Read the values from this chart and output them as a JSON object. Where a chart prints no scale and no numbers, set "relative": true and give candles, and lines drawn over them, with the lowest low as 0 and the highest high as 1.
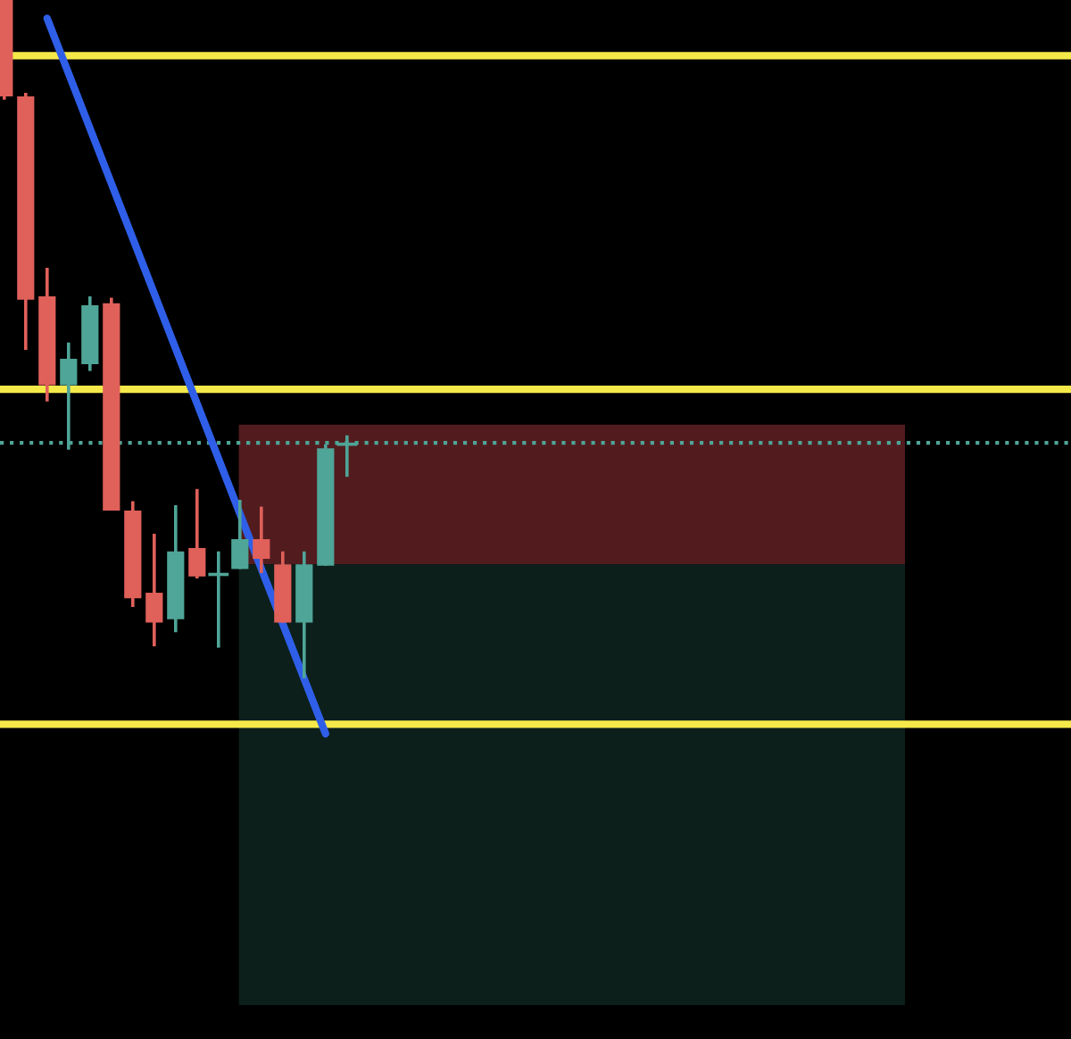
{
  "chart_data": {
    "type": "candlestick",
    "relative": true,
    "categories": [
      null,
      null,
      null,
      null,
      null,
      null,
      null,
      null,
      null,
      null,
      null,
      null,
      null,
      null,
      null,
      null,
      null
    ],
    "ohlc": [
      [
        1.0,
        1.0,
        0.853,
        0.858
      ],
      [
        0.858,
        0.863,
        0.484,
        0.558
      ],
      [
        0.563,
        0.605,
        0.408,
        0.432
      ],
      [
        0.432,
        0.495,
        0.337,
        0.471
      ],
      [
        0.463,
        0.563,
        0.453,
        0.55
      ],
      [
        0.553,
        0.561,
        0.247,
        0.247
      ],
      [
        0.247,
        0.261,
        0.105,
        0.118
      ],
      [
        0.126,
        0.213,
        0.047,
        0.082
      ],
      [
        0.087,
        0.255,
        0.068,
        0.187
      ],
      [
        0.192,
        0.279,
        0.147,
        0.15
      ],
      [
        0.153,
        0.187,
        0.045,
        0.153
      ],
      [
        0.161,
        0.263,
        0.161,
        0.205
      ],
      [
        0.205,
        0.253,
        0.155,
        0.176
      ],
      [
        0.168,
        0.187,
        0.082,
        0.082
      ],
      [
        0.082,
        0.187,
        0.0,
        0.168
      ],
      [
        0.166,
        0.345,
        0.166,
        0.339
      ],
      [
        0.345,
        0.358,
        0.297,
        0.345
      ]
    ],
    "colors": [
      "#e0605a",
      "#e0605a",
      "#e0605a",
      "#4fa597",
      "#4fa597",
      "#e0605a",
      "#e0605a",
      "#e0605a",
      "#4fa597",
      "#e0605a",
      "#4fa597",
      "#4fa597",
      "#e0605a",
      "#e0605a",
      "#4fa597",
      "#4fa597",
      "#4fa597"
    ],
    "series": [
      {
        "type": "line",
        "color": "#2f5fe8",
        "values": [
          null,
          null,
          0.973,
          null,
          null,
          null,
          null,
          null,
          null,
          null,
          null,
          null,
          null,
          null,
          null,
          -0.082,
          null
        ]
      }
    ],
    "ref_lines": [
      {
        "axis": "y",
        "value": 0.918,
        "color": "#f5e94a",
        "line_style": "solid"
      },
      {
        "axis": "y",
        "value": 0.426,
        "color": "#f5e94a",
        "line_style": "solid"
      },
      {
        "axis": "y",
        "value": -0.068,
        "color": "#f5e94a",
        "line_style": "solid"
      },
      {
        "axis": "y",
        "value": 0.347,
        "color": "#4fa597",
        "line_style": "dotted"
      }
    ],
    "bands": [
      {
        "axis": "y",
        "from": 0.168,
        "to": 0.374,
        "color": "#521c1f"
      },
      {
        "axis": "y",
        "from": -0.482,
        "to": 0.168,
        "color": "#0c1f1b"
      }
    ]
  }
}
